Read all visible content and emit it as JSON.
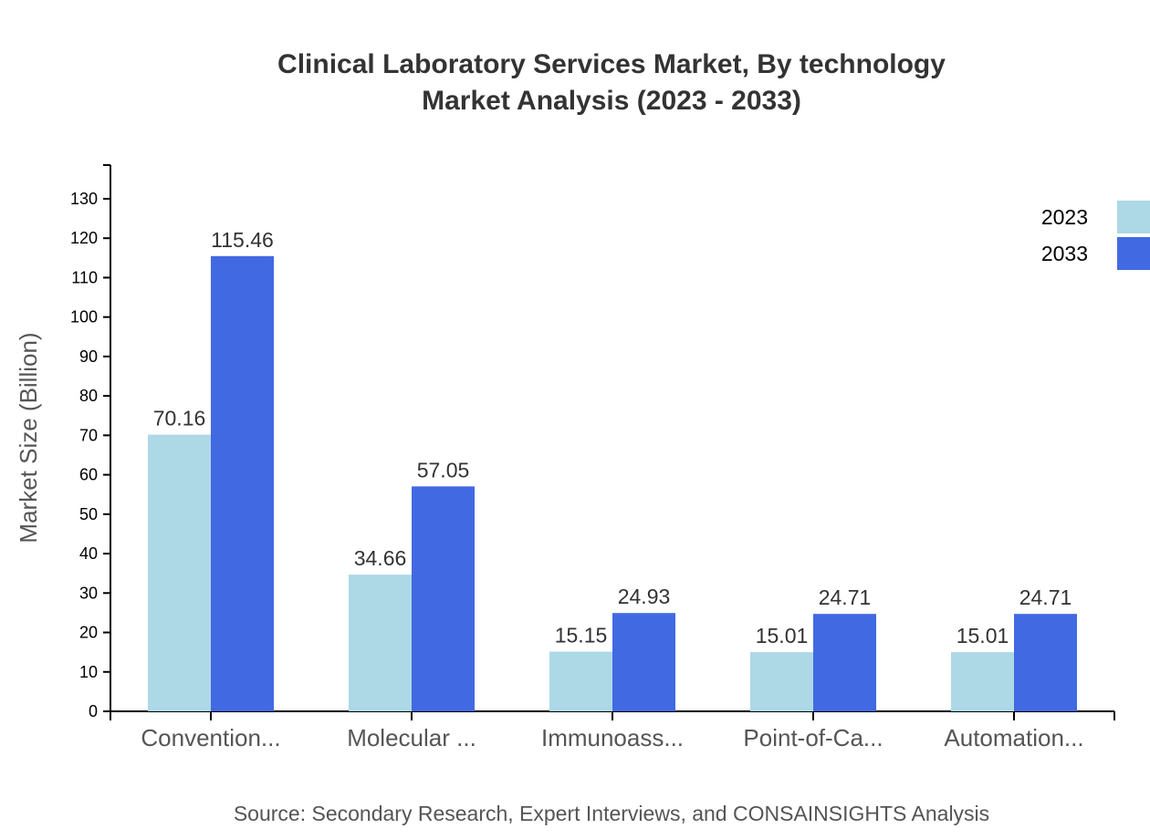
{
  "chart_data": {
    "type": "bar",
    "title": "Clinical Laboratory Services Market, By technology",
    "subtitle": "Market Analysis (2023 - 2033)",
    "ylabel": "Market Size (Billion)",
    "xlabel": "",
    "categories": [
      "Convention...",
      "Molecular ...",
      "Immunoass...",
      "Point-of-Ca...",
      "Automation..."
    ],
    "series": [
      {
        "name": "2023",
        "color": "#add8e6",
        "values": [
          70.16,
          34.66,
          15.15,
          15.01,
          15.01
        ]
      },
      {
        "name": "2033",
        "color": "#4169e1",
        "values": [
          115.46,
          57.05,
          24.93,
          24.71,
          24.71
        ]
      }
    ],
    "ylim": [
      0,
      138.55
    ],
    "yticks": [
      0,
      10,
      20,
      30,
      40,
      50,
      60,
      70,
      80,
      90,
      100,
      110,
      120,
      130
    ],
    "grid": false,
    "legend": "top-right",
    "source": "Source: Secondary Research, Expert Interviews, and CONSAINSIGHTS Analysis"
  }
}
